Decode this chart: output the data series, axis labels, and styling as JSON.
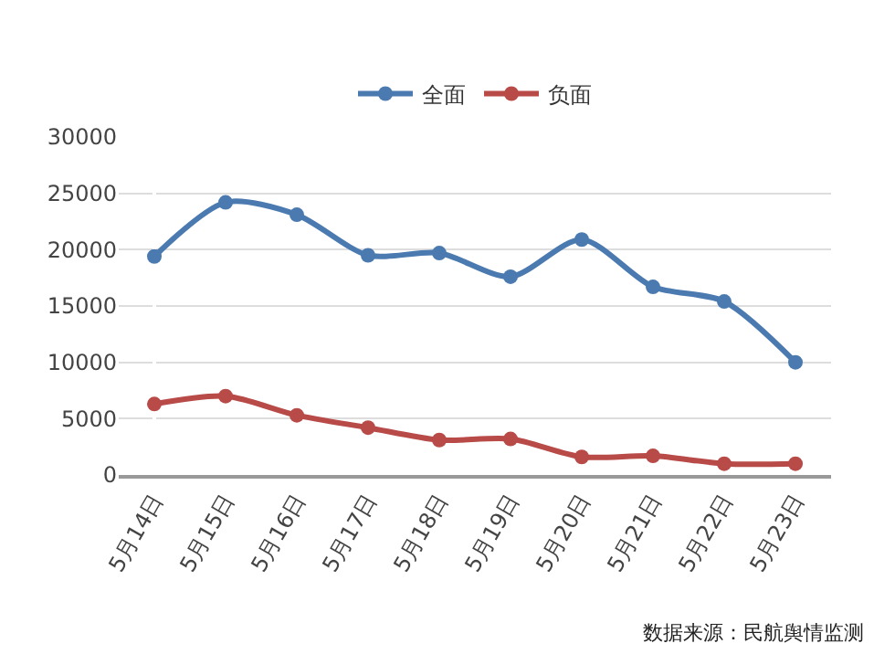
{
  "chart_data": {
    "type": "line",
    "categories": [
      "5月14日",
      "5月15日",
      "5月16日",
      "5月17日",
      "5月18日",
      "5月19日",
      "5月20日",
      "5月21日",
      "5月22日",
      "5月23日"
    ],
    "series": [
      {
        "name": "全面",
        "color": "#4a7ab0",
        "values": [
          19400,
          24200,
          23100,
          19500,
          19700,
          17600,
          20900,
          16700,
          15400,
          10000
        ]
      },
      {
        "name": "负面",
        "color": "#b84a48",
        "values": [
          6300,
          7000,
          5300,
          4200,
          3100,
          3200,
          1600,
          1700,
          1000,
          1000
        ]
      }
    ],
    "ylim": [
      0,
      30000
    ],
    "yticks": [
      0,
      5000,
      10000,
      15000,
      20000,
      25000,
      30000
    ],
    "grid": "y",
    "legend": "top",
    "marker": "circle",
    "line_style": "solid",
    "annotations": [
      "数据来源：民航舆情监测"
    ]
  }
}
